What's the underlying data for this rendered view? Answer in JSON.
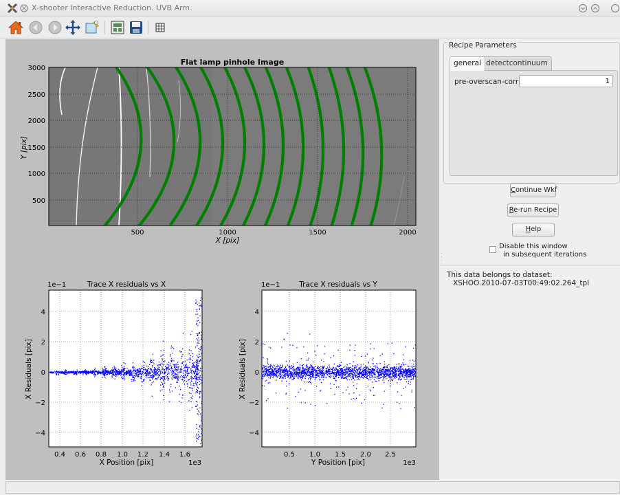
{
  "window": {
    "title": "X-shooter Interactive  Reduction. UVB Arm."
  },
  "toolbar": {
    "buttons": [
      "home-icon",
      "back-icon",
      "forward-icon",
      "pan-icon",
      "zoom-icon",
      "subplots-icon",
      "save-icon",
      "edit-axes-icon"
    ]
  },
  "plots": {
    "image": {
      "title": "Flat lamp pinhole Image",
      "xlabel": "X [pix]",
      "ylabel": "Y [pix]",
      "xticks": [
        "500",
        "1000",
        "1500",
        "2000"
      ],
      "yticks": [
        "500",
        "1000",
        "1500",
        "2000",
        "2500",
        "3000"
      ]
    },
    "resid_x": {
      "title": "Trace X residuals vs X",
      "xlabel": "X Position [pix]",
      "ylabel": "X Residuals [pix]",
      "yscale": "1e−1",
      "xscale": "1e3",
      "xticks": [
        "0.4",
        "0.6",
        "0.8",
        "1.0",
        "1.2",
        "1.4",
        "1.6"
      ],
      "yticks": [
        "4",
        "2",
        "0",
        "−2",
        "−4"
      ]
    },
    "resid_y": {
      "title": "Trace X residuals vs Y",
      "xlabel": "Y Position [pix]",
      "ylabel": "X Residuals [pix]",
      "yscale": "1e−1",
      "xscale": "1e3",
      "xticks": [
        "0.5",
        "1.0",
        "1.5",
        "2.0",
        "2.5"
      ],
      "yticks": [
        "4",
        "2",
        "0",
        "−2",
        "−4"
      ]
    }
  },
  "colors": {
    "trace": "#008000",
    "points": "#0000ff",
    "figure_bg": "#bfbfbf",
    "image_bg": "#7a7a7a"
  },
  "recipe": {
    "legend": "Recipe Parameters",
    "tabs": [
      "general",
      "detectcontinuum"
    ],
    "param_label": "pre-overscan-corr",
    "param_value": "1"
  },
  "buttons": {
    "continue": {
      "mn": "C",
      "rest": "ontinue Wkf"
    },
    "rerun": {
      "mn": "R",
      "rest": "e-run Recipe"
    },
    "help": {
      "mn": "H",
      "rest": "elp"
    }
  },
  "disable": {
    "line1": "Disable this window",
    "line2": "in subsequent iterations"
  },
  "dataset": {
    "line1": "This data belongs to dataset:",
    "line2": "XSHOO.2010-07-03T00:49:02.264_tpl"
  }
}
